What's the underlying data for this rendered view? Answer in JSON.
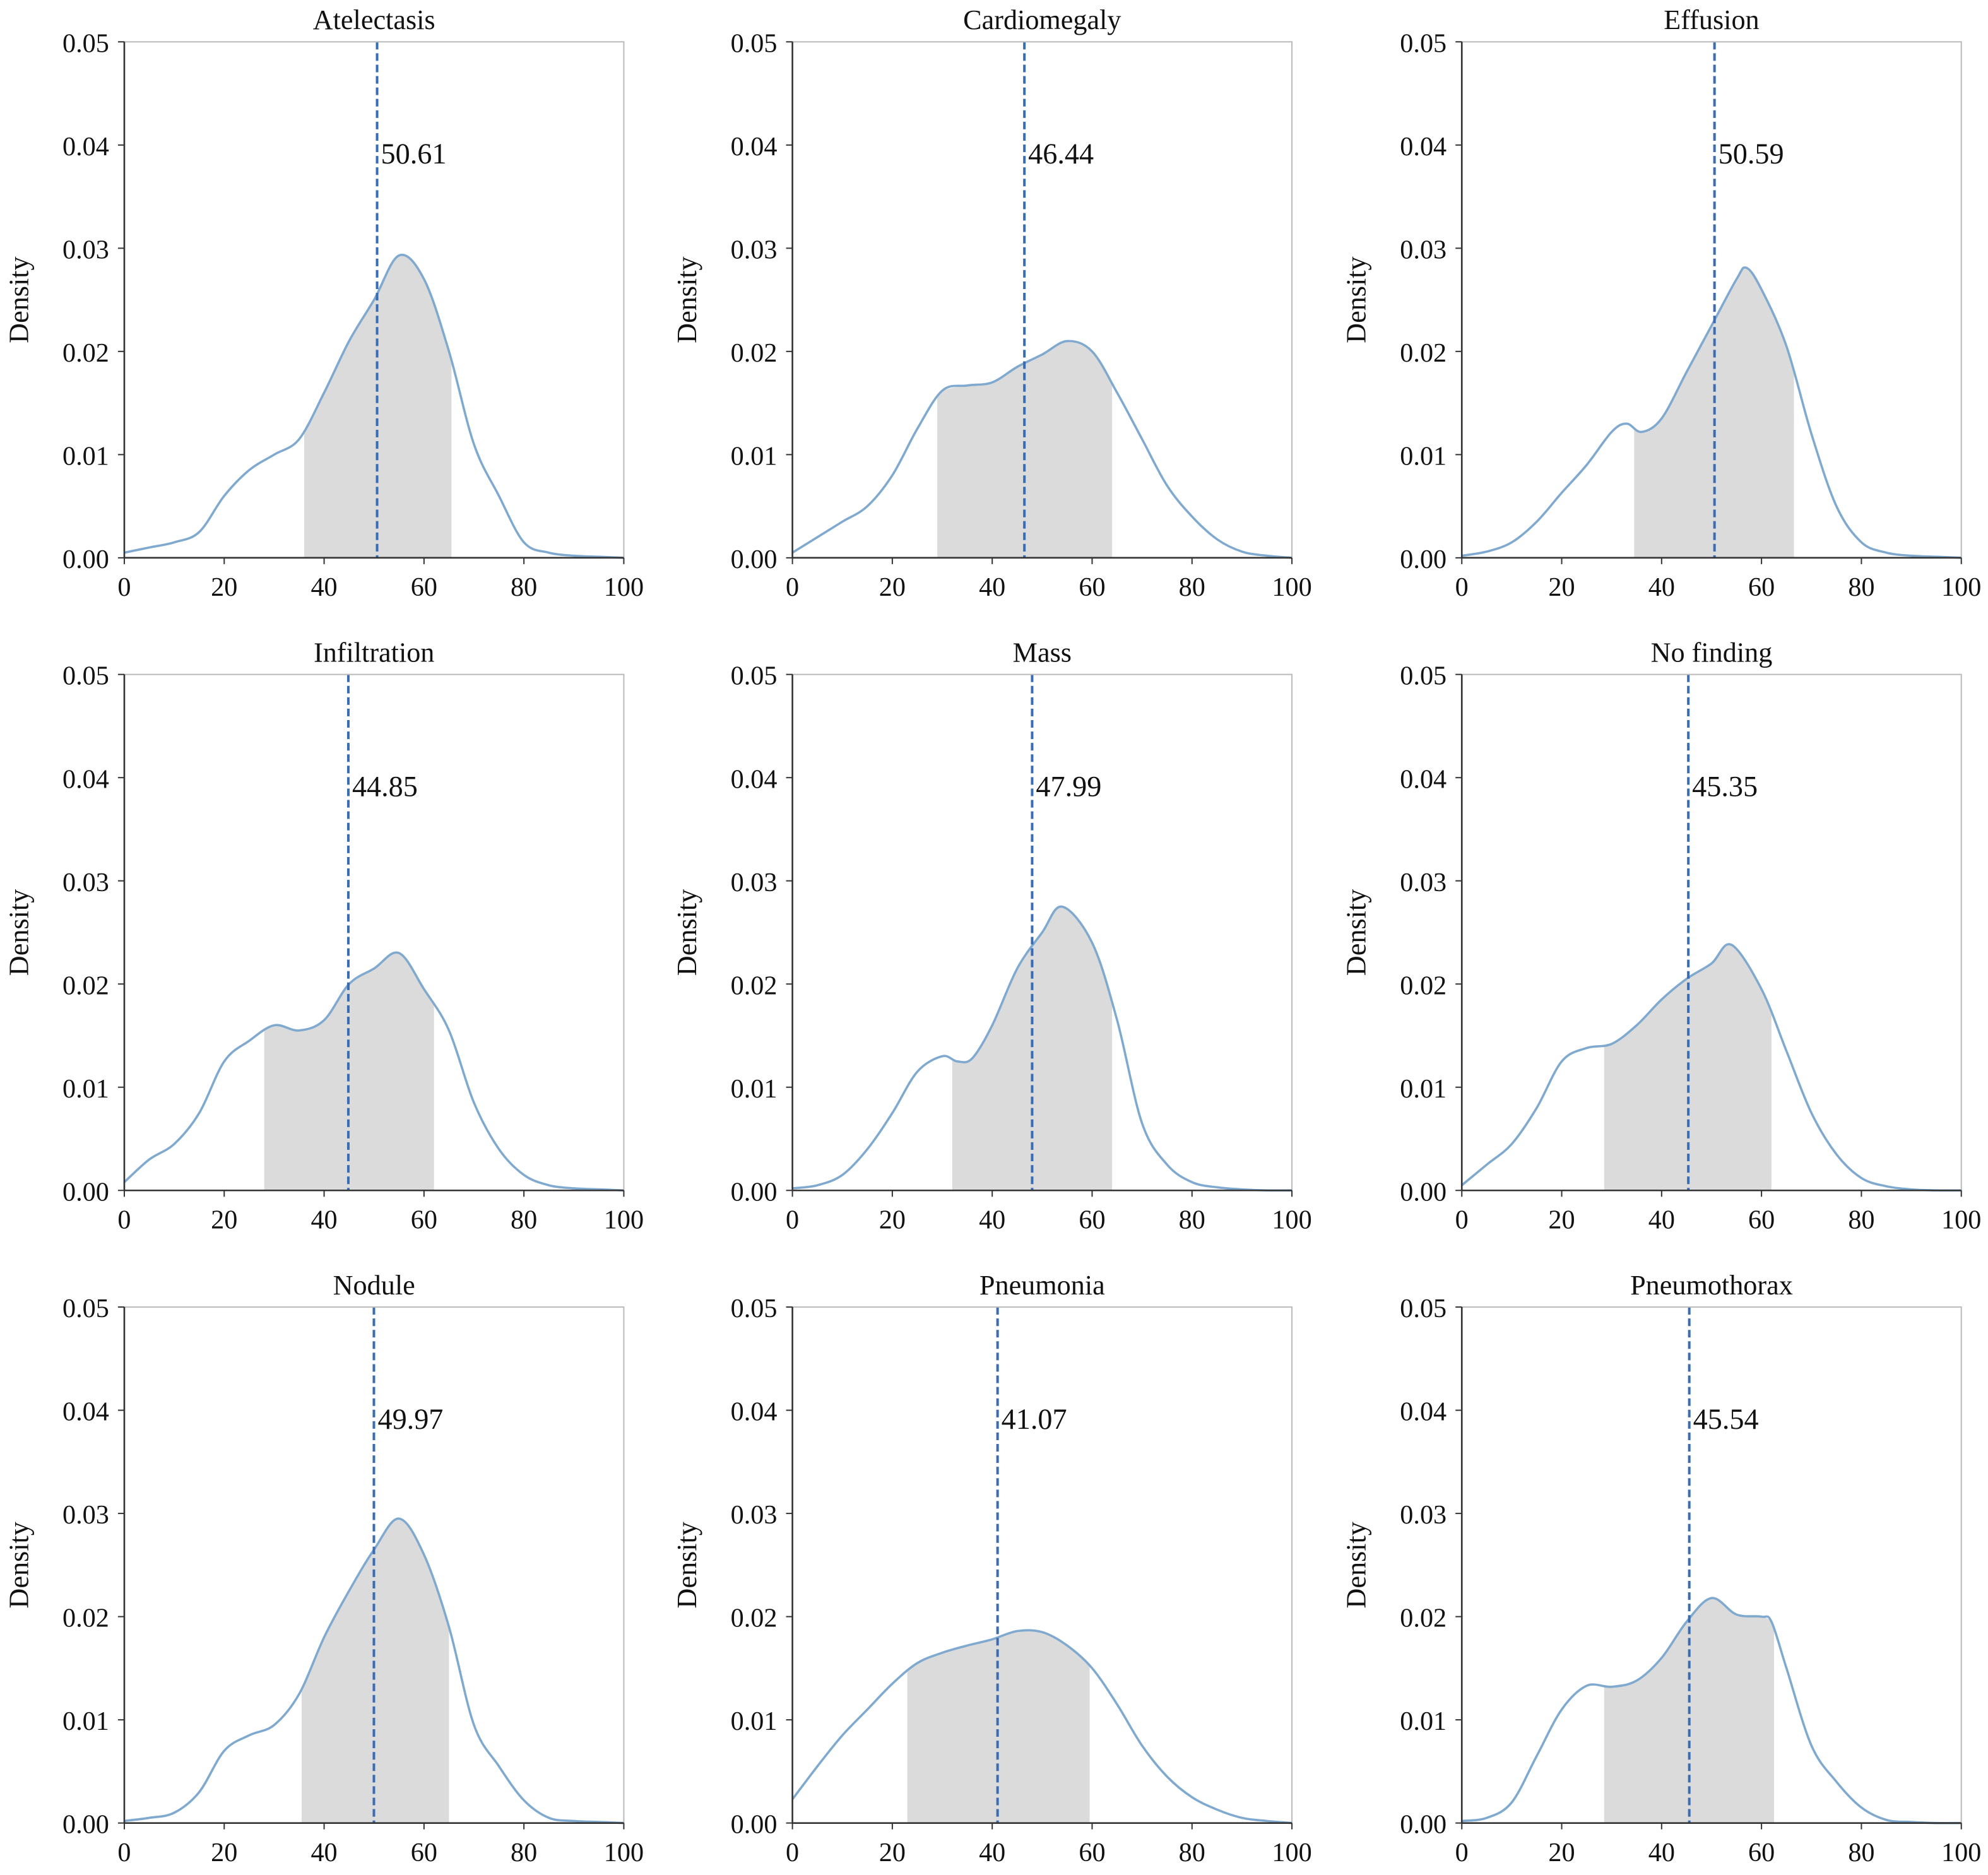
{
  "chart_data": [
    {
      "type": "area",
      "title": "Atelectasis",
      "ylabel": "Density",
      "xlim": [
        0,
        100
      ],
      "ylim": [
        0,
        0.05
      ],
      "xticks": [
        "0",
        "20",
        "40",
        "60",
        "80",
        "100"
      ],
      "yticks": [
        "0.00",
        "0.01",
        "0.02",
        "0.03",
        "0.04",
        "0.05"
      ],
      "mean": 50.61,
      "mean_label": "50.61",
      "shade_range": [
        36,
        65.5
      ],
      "points": [
        [
          0,
          0.0005
        ],
        [
          5,
          0.001
        ],
        [
          10,
          0.0015
        ],
        [
          15,
          0.0025
        ],
        [
          20,
          0.006
        ],
        [
          25,
          0.0085
        ],
        [
          30,
          0.01
        ],
        [
          35,
          0.0115
        ],
        [
          40,
          0.016
        ],
        [
          45,
          0.021
        ],
        [
          50,
          0.025
        ],
        [
          55,
          0.0293
        ],
        [
          60,
          0.027
        ],
        [
          65,
          0.02
        ],
        [
          70,
          0.011
        ],
        [
          75,
          0.006
        ],
        [
          80,
          0.0015
        ],
        [
          85,
          0.0005
        ],
        [
          90,
          0.0002
        ],
        [
          95,
          0.0001
        ],
        [
          100,
          0
        ]
      ]
    },
    {
      "type": "area",
      "title": "Cardiomegaly",
      "ylabel": "Density",
      "xlim": [
        0,
        100
      ],
      "ylim": [
        0,
        0.05
      ],
      "xticks": [
        "0",
        "20",
        "40",
        "60",
        "80",
        "100"
      ],
      "yticks": [
        "0.00",
        "0.01",
        "0.02",
        "0.03",
        "0.04",
        "0.05"
      ],
      "mean": 46.44,
      "mean_label": "46.44",
      "shade_range": [
        29,
        64
      ],
      "points": [
        [
          0,
          0.0005
        ],
        [
          5,
          0.002
        ],
        [
          10,
          0.0035
        ],
        [
          15,
          0.005
        ],
        [
          20,
          0.008
        ],
        [
          25,
          0.0125
        ],
        [
          30,
          0.0162
        ],
        [
          35,
          0.0167
        ],
        [
          40,
          0.017
        ],
        [
          45,
          0.0185
        ],
        [
          50,
          0.0197
        ],
        [
          55,
          0.021
        ],
        [
          60,
          0.02
        ],
        [
          65,
          0.016
        ],
        [
          70,
          0.0115
        ],
        [
          75,
          0.007
        ],
        [
          80,
          0.004
        ],
        [
          85,
          0.0018
        ],
        [
          90,
          0.0006
        ],
        [
          95,
          0.0002
        ],
        [
          100,
          0
        ]
      ]
    },
    {
      "type": "area",
      "title": "Effusion",
      "ylabel": "Density",
      "xlim": [
        0,
        100
      ],
      "ylim": [
        0,
        0.05
      ],
      "xticks": [
        "0",
        "20",
        "40",
        "60",
        "80",
        "100"
      ],
      "yticks": [
        "0.00",
        "0.01",
        "0.02",
        "0.03",
        "0.04",
        "0.05"
      ],
      "mean": 50.59,
      "mean_label": "50.59",
      "shade_range": [
        34.5,
        66.5
      ],
      "points": [
        [
          0,
          0.0002
        ],
        [
          5,
          0.0006
        ],
        [
          10,
          0.0015
        ],
        [
          15,
          0.0035
        ],
        [
          20,
          0.0063
        ],
        [
          25,
          0.009
        ],
        [
          30,
          0.0122
        ],
        [
          33,
          0.013
        ],
        [
          36,
          0.0122
        ],
        [
          40,
          0.0135
        ],
        [
          45,
          0.018
        ],
        [
          50,
          0.0225
        ],
        [
          55,
          0.027
        ],
        [
          57,
          0.0281
        ],
        [
          60,
          0.026
        ],
        [
          65,
          0.0205
        ],
        [
          70,
          0.012
        ],
        [
          75,
          0.005
        ],
        [
          80,
          0.0015
        ],
        [
          85,
          0.0005
        ],
        [
          90,
          0.0002
        ],
        [
          95,
          0.0001
        ],
        [
          100,
          0
        ]
      ]
    },
    {
      "type": "area",
      "title": "Infiltration",
      "ylabel": "Density",
      "xlim": [
        0,
        100
      ],
      "ylim": [
        0,
        0.05
      ],
      "xticks": [
        "0",
        "20",
        "40",
        "60",
        "80",
        "100"
      ],
      "yticks": [
        "0.00",
        "0.01",
        "0.02",
        "0.03",
        "0.04",
        "0.05"
      ],
      "mean": 44.85,
      "mean_label": "44.85",
      "shade_range": [
        28,
        62
      ],
      "points": [
        [
          0,
          0.0008
        ],
        [
          5,
          0.003
        ],
        [
          10,
          0.0045
        ],
        [
          15,
          0.0075
        ],
        [
          20,
          0.0125
        ],
        [
          25,
          0.0145
        ],
        [
          30,
          0.016
        ],
        [
          35,
          0.0155
        ],
        [
          40,
          0.0165
        ],
        [
          45,
          0.02
        ],
        [
          50,
          0.0215
        ],
        [
          55,
          0.023
        ],
        [
          60,
          0.0195
        ],
        [
          65,
          0.0155
        ],
        [
          70,
          0.0085
        ],
        [
          75,
          0.004
        ],
        [
          80,
          0.0015
        ],
        [
          85,
          0.0005
        ],
        [
          90,
          0.0002
        ],
        [
          95,
          0.0001
        ],
        [
          100,
          0
        ]
      ]
    },
    {
      "type": "area",
      "title": "Mass",
      "ylabel": "Density",
      "xlim": [
        0,
        100
      ],
      "ylim": [
        0,
        0.05
      ],
      "xticks": [
        "0",
        "20",
        "40",
        "60",
        "80",
        "100"
      ],
      "yticks": [
        "0.00",
        "0.01",
        "0.02",
        "0.03",
        "0.04",
        "0.05"
      ],
      "mean": 47.99,
      "mean_label": "47.99",
      "shade_range": [
        32,
        64
      ],
      "points": [
        [
          0,
          0.0002
        ],
        [
          5,
          0.0005
        ],
        [
          10,
          0.0015
        ],
        [
          15,
          0.004
        ],
        [
          20,
          0.0075
        ],
        [
          25,
          0.0115
        ],
        [
          30,
          0.013
        ],
        [
          33,
          0.0125
        ],
        [
          36,
          0.0128
        ],
        [
          40,
          0.016
        ],
        [
          45,
          0.0215
        ],
        [
          50,
          0.025
        ],
        [
          54,
          0.0275
        ],
        [
          60,
          0.024
        ],
        [
          65,
          0.0165
        ],
        [
          70,
          0.0065
        ],
        [
          75,
          0.0025
        ],
        [
          80,
          0.0008
        ],
        [
          85,
          0.0003
        ],
        [
          90,
          0.0001
        ],
        [
          95,
          0
        ],
        [
          100,
          0
        ]
      ]
    },
    {
      "type": "area",
      "title": "No finding",
      "ylabel": "Density",
      "xlim": [
        0,
        100
      ],
      "ylim": [
        0,
        0.05
      ],
      "xticks": [
        "0",
        "20",
        "40",
        "60",
        "80",
        "100"
      ],
      "yticks": [
        "0.00",
        "0.01",
        "0.02",
        "0.03",
        "0.04",
        "0.05"
      ],
      "mean": 45.35,
      "mean_label": "45.35",
      "shade_range": [
        28.5,
        62
      ],
      "points": [
        [
          0,
          0.0005
        ],
        [
          5,
          0.0025
        ],
        [
          10,
          0.0045
        ],
        [
          15,
          0.008
        ],
        [
          20,
          0.0125
        ],
        [
          25,
          0.0138
        ],
        [
          30,
          0.0142
        ],
        [
          35,
          0.016
        ],
        [
          40,
          0.0185
        ],
        [
          45,
          0.0205
        ],
        [
          50,
          0.022
        ],
        [
          54,
          0.0238
        ],
        [
          60,
          0.0195
        ],
        [
          65,
          0.0135
        ],
        [
          70,
          0.0075
        ],
        [
          75,
          0.0035
        ],
        [
          80,
          0.0012
        ],
        [
          85,
          0.0004
        ],
        [
          90,
          0.0001
        ],
        [
          95,
          0
        ],
        [
          100,
          0
        ]
      ]
    },
    {
      "type": "area",
      "title": "Nodule",
      "ylabel": "Density",
      "xlim": [
        0,
        100
      ],
      "ylim": [
        0,
        0.05
      ],
      "xticks": [
        "0",
        "20",
        "40",
        "60",
        "80",
        "100"
      ],
      "yticks": [
        "0.00",
        "0.01",
        "0.02",
        "0.03",
        "0.04",
        "0.05"
      ],
      "mean": 49.97,
      "mean_label": "49.97",
      "shade_range": [
        35.5,
        65
      ],
      "points": [
        [
          0,
          0.0002
        ],
        [
          5,
          0.0005
        ],
        [
          10,
          0.001
        ],
        [
          15,
          0.003
        ],
        [
          20,
          0.007
        ],
        [
          25,
          0.0085
        ],
        [
          30,
          0.0095
        ],
        [
          35,
          0.0125
        ],
        [
          40,
          0.018
        ],
        [
          45,
          0.0225
        ],
        [
          50,
          0.0265
        ],
        [
          55,
          0.0295
        ],
        [
          60,
          0.026
        ],
        [
          65,
          0.019
        ],
        [
          70,
          0.0095
        ],
        [
          75,
          0.0055
        ],
        [
          80,
          0.0022
        ],
        [
          85,
          0.0005
        ],
        [
          90,
          0.0002
        ],
        [
          95,
          0.0001
        ],
        [
          100,
          0
        ]
      ]
    },
    {
      "type": "area",
      "title": "Pneumonia",
      "ylabel": "Density",
      "xlim": [
        0,
        100
      ],
      "ylim": [
        0,
        0.05
      ],
      "xticks": [
        "0",
        "20",
        "40",
        "60",
        "80",
        "100"
      ],
      "yticks": [
        "0.00",
        "0.01",
        "0.02",
        "0.03",
        "0.04",
        "0.05"
      ],
      "mean": 41.07,
      "mean_label": "41.07",
      "shade_range": [
        23,
        59.5
      ],
      "points": [
        [
          0,
          0.0023
        ],
        [
          5,
          0.0055
        ],
        [
          10,
          0.0085
        ],
        [
          15,
          0.011
        ],
        [
          20,
          0.0135
        ],
        [
          25,
          0.0155
        ],
        [
          30,
          0.0165
        ],
        [
          35,
          0.0172
        ],
        [
          40,
          0.0178
        ],
        [
          45,
          0.0186
        ],
        [
          50,
          0.0185
        ],
        [
          55,
          0.0172
        ],
        [
          60,
          0.015
        ],
        [
          65,
          0.0115
        ],
        [
          70,
          0.0075
        ],
        [
          75,
          0.0045
        ],
        [
          80,
          0.0025
        ],
        [
          85,
          0.0013
        ],
        [
          90,
          0.0005
        ],
        [
          95,
          0.0002
        ],
        [
          100,
          0
        ]
      ]
    },
    {
      "type": "area",
      "title": "Pneumothorax",
      "ylabel": "Density",
      "xlim": [
        0,
        100
      ],
      "ylim": [
        0,
        0.05
      ],
      "xticks": [
        "0",
        "20",
        "40",
        "60",
        "80",
        "100"
      ],
      "yticks": [
        "0.00",
        "0.01",
        "0.02",
        "0.03",
        "0.04",
        "0.05"
      ],
      "mean": 45.54,
      "mean_label": "45.54",
      "shade_range": [
        28.5,
        62.5
      ],
      "points": [
        [
          0,
          0.0002
        ],
        [
          5,
          0.0005
        ],
        [
          10,
          0.002
        ],
        [
          15,
          0.0065
        ],
        [
          20,
          0.011
        ],
        [
          25,
          0.0133
        ],
        [
          30,
          0.0132
        ],
        [
          35,
          0.0138
        ],
        [
          40,
          0.016
        ],
        [
          45,
          0.0195
        ],
        [
          50,
          0.0218
        ],
        [
          55,
          0.0202
        ],
        [
          60,
          0.02
        ],
        [
          62,
          0.0195
        ],
        [
          65,
          0.015
        ],
        [
          70,
          0.0075
        ],
        [
          75,
          0.004
        ],
        [
          80,
          0.0015
        ],
        [
          85,
          0.0003
        ],
        [
          90,
          0.0001
        ],
        [
          95,
          0
        ],
        [
          100,
          0
        ]
      ]
    }
  ],
  "colors": {
    "curve": "#7fa9cf",
    "mean_line": "#3a6cb4",
    "shade": "#dcdbdb",
    "axis": "#333333"
  }
}
